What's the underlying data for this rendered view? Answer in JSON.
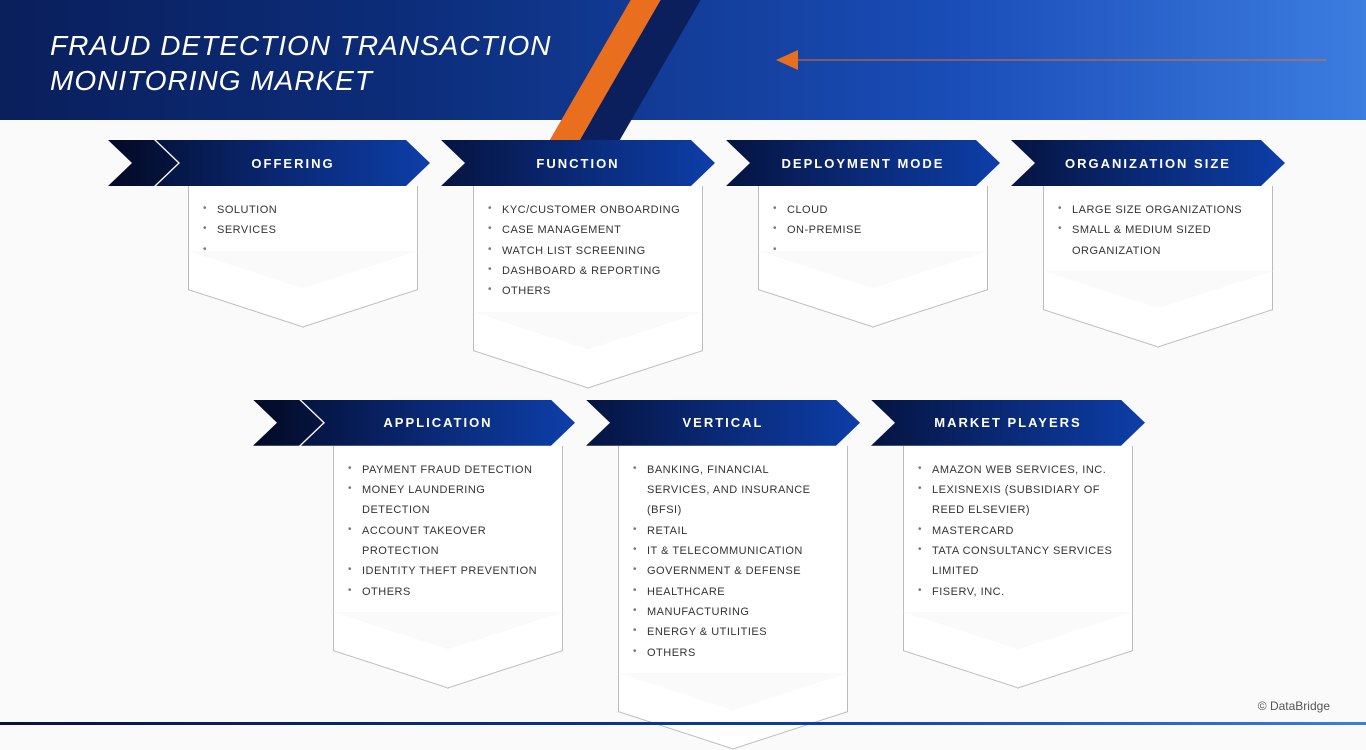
{
  "header": {
    "title": "FRAUD DETECTION TRANSACTION MONITORING MARKET"
  },
  "colors": {
    "header_gradient_from": "#0a1f5c",
    "header_gradient_to": "#3c7de0",
    "chevron_gradient_from": "#051440",
    "chevron_gradient_to": "#0d3ea8",
    "accent_orange": "#e96f1f",
    "body_border": "#bbbbbb",
    "page_bg": "#fafafa"
  },
  "rows": {
    "top": [
      {
        "key": "offering",
        "label": "OFFERING",
        "items": [
          "SOLUTION",
          "SERVICES",
          ""
        ]
      },
      {
        "key": "function",
        "label": "FUNCTION",
        "items": [
          "KYC/CUSTOMER ONBOARDING",
          "CASE MANAGEMENT",
          "WATCH LIST SCREENING",
          "DASHBOARD & REPORTING",
          "OTHERS"
        ]
      },
      {
        "key": "deployment",
        "label": "DEPLOYMENT MODE",
        "items": [
          "CLOUD",
          "ON-PREMISE",
          ""
        ]
      },
      {
        "key": "orgsize",
        "label": "ORGANIZATION SIZE",
        "items": [
          "LARGE SIZE ORGANIZATIONS",
          "SMALL & MEDIUM SIZED ORGANIZATION"
        ]
      }
    ],
    "bottom": [
      {
        "key": "application",
        "label": "APPLICATION",
        "items": [
          "PAYMENT FRAUD DETECTION",
          "MONEY LAUNDERING DETECTION",
          "ACCOUNT TAKEOVER PROTECTION",
          "IDENTITY THEFT PREVENTION",
          "OTHERS"
        ]
      },
      {
        "key": "vertical",
        "label": "VERTICAL",
        "items": [
          "BANKING, FINANCIAL SERVICES, AND INSURANCE (BFSI)",
          "RETAIL",
          "IT & TELECOMMUNICATION",
          "GOVERNMENT & DEFENSE",
          "HEALTHCARE",
          "MANUFACTURING",
          "ENERGY & UTILITIES",
          "OTHERS"
        ]
      },
      {
        "key": "players",
        "label": "MARKET PLAYERS",
        "items": [
          "AMAZON WEB SERVICES, INC.",
          "LEXISNEXIS (SUBSIDIARY OF REED ELSEVIER)",
          "MASTERCARD",
          "TATA CONSULTANCY SERVICES LIMITED",
          "FISERV, INC."
        ]
      }
    ]
  },
  "footer": {
    "copyright": "© DataBridge"
  }
}
